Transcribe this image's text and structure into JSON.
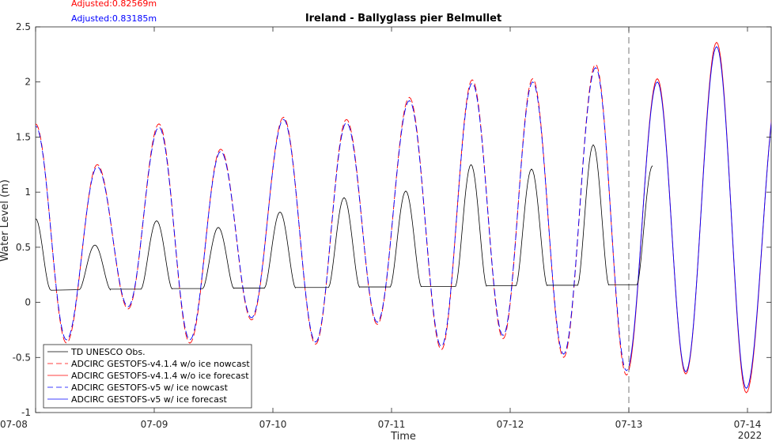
{
  "chart_data": {
    "type": "line",
    "title": "Ireland - Ballyglass pier Belmullet",
    "xlabel": "Time",
    "ylabel": "Water Level (m)",
    "x_unit": "days since 2022-07-08 00:00",
    "xlim": [
      0,
      6.2
    ],
    "ylim": [
      -1,
      2.5
    ],
    "yticks": [
      -1,
      -0.5,
      0,
      0.5,
      1,
      1.5,
      2,
      2.5
    ],
    "ytick_labels": [
      "-1",
      "-0.5",
      "0",
      "0.5",
      "1",
      "1.5",
      "2",
      "2.5"
    ],
    "xticks": [
      0,
      1,
      2,
      3,
      4,
      5,
      6
    ],
    "xtick_labels": [
      "07-08",
      "07-09",
      "07-10",
      "07-11",
      "07-12",
      "07-13",
      "07-14"
    ],
    "year_label": "2022",
    "nowcast_end": 5.0,
    "adjusted": [
      {
        "text": "Adjusted:0.82569m",
        "color": "#ff0000"
      },
      {
        "text": "Adjusted:0.83185m",
        "color": "#0000ff"
      }
    ],
    "legend": {
      "placement": "bottom-left",
      "entries": [
        {
          "label": "TD UNESCO Obs.",
          "color": "#000000",
          "dash": "solid"
        },
        {
          "label": "ADCIRC GESTOFS-v4.1.4 w/o ice nowcast",
          "color": "#ff0000",
          "dash": "dashed"
        },
        {
          "label": "ADCIRC GESTOFS-v4.1.4 w/o ice forecast",
          "color": "#ff0000",
          "dash": "solid"
        },
        {
          "label": "ADCIRC GESTOFS-v5 w/ ice nowcast",
          "color": "#0000ff",
          "dash": "dashed"
        },
        {
          "label": "ADCIRC GESTOFS-v5 w/ ice forecast",
          "color": "#0000ff",
          "dash": "solid"
        }
      ]
    },
    "series": [
      {
        "name": "TD UNESCO Obs.",
        "color": "#000000",
        "kind": "obs",
        "floor": 0.11,
        "floor_end": 0.16,
        "peaks": [
          [
            0.0,
            0.76
          ],
          [
            0.5,
            0.52
          ],
          [
            1.02,
            0.74
          ],
          [
            1.54,
            0.68
          ],
          [
            2.06,
            0.82
          ],
          [
            2.6,
            0.95
          ],
          [
            3.12,
            1.01
          ],
          [
            3.67,
            1.25
          ],
          [
            4.18,
            1.21
          ],
          [
            4.7,
            1.43
          ],
          [
            5.2,
            1.24
          ]
        ],
        "obs_end": 5.22
      },
      {
        "name": "ADCIRC GESTOFS-v4.1.4 w/o ice",
        "color": "#ff0000",
        "kind": "model",
        "highs": [
          [
            0.0,
            1.62
          ],
          [
            0.52,
            1.25
          ],
          [
            1.04,
            1.62
          ],
          [
            1.56,
            1.39
          ],
          [
            2.09,
            1.68
          ],
          [
            2.62,
            1.66
          ],
          [
            3.15,
            1.86
          ],
          [
            3.68,
            2.02
          ],
          [
            4.19,
            2.03
          ],
          [
            4.72,
            2.16
          ],
          [
            5.24,
            2.03
          ],
          [
            5.74,
            2.36
          ],
          [
            6.26,
            1.96
          ]
        ],
        "lows": [
          [
            0.26,
            -0.37
          ],
          [
            0.78,
            -0.06
          ],
          [
            1.3,
            -0.37
          ],
          [
            1.82,
            -0.16
          ],
          [
            2.36,
            -0.38
          ],
          [
            2.88,
            -0.2
          ],
          [
            3.42,
            -0.43
          ],
          [
            3.94,
            -0.33
          ],
          [
            4.45,
            -0.5
          ],
          [
            4.98,
            -0.66
          ],
          [
            5.48,
            -0.65
          ],
          [
            5.99,
            -0.82
          ]
        ]
      },
      {
        "name": "ADCIRC GESTOFS-v5 w/ ice",
        "color": "#0000ff",
        "kind": "model",
        "highs": [
          [
            0.0,
            1.6
          ],
          [
            0.52,
            1.23
          ],
          [
            1.04,
            1.59
          ],
          [
            1.56,
            1.37
          ],
          [
            2.09,
            1.66
          ],
          [
            2.62,
            1.63
          ],
          [
            3.15,
            1.83
          ],
          [
            3.68,
            1.99
          ],
          [
            4.19,
            2.0
          ],
          [
            4.72,
            2.13
          ],
          [
            5.24,
            2.0
          ],
          [
            5.74,
            2.32
          ],
          [
            6.26,
            1.94
          ]
        ],
        "lows": [
          [
            0.26,
            -0.34
          ],
          [
            0.78,
            -0.04
          ],
          [
            1.3,
            -0.34
          ],
          [
            1.82,
            -0.14
          ],
          [
            2.36,
            -0.36
          ],
          [
            2.88,
            -0.18
          ],
          [
            3.42,
            -0.4
          ],
          [
            3.94,
            -0.3
          ],
          [
            4.45,
            -0.47
          ],
          [
            4.98,
            -0.62
          ],
          [
            5.48,
            -0.63
          ],
          [
            5.99,
            -0.78
          ]
        ]
      }
    ]
  }
}
